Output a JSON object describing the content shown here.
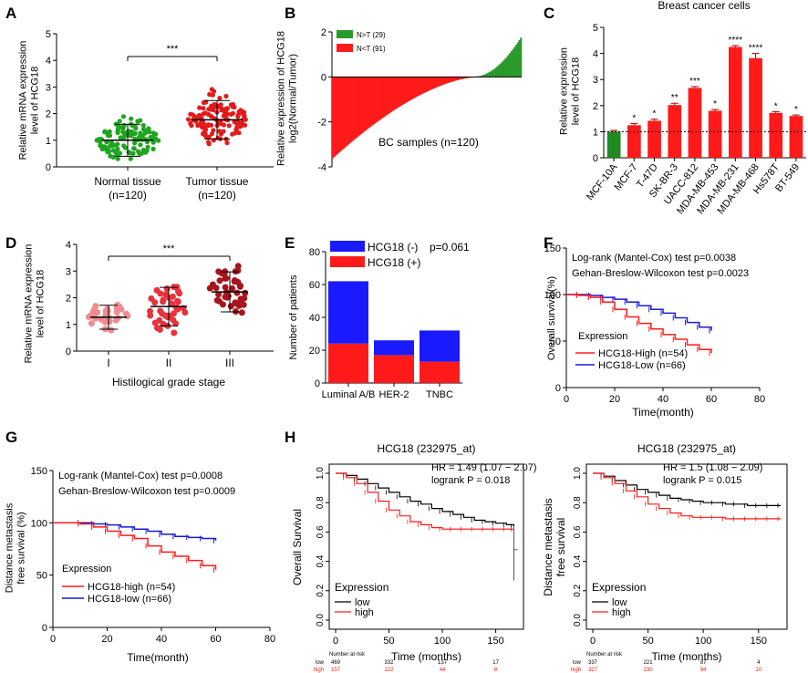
{
  "panels": {
    "A": {
      "letter": "A",
      "chart_data": {
        "type": "scatter",
        "ylabel": [
          "Relative mRNA expression",
          "level of HCG18"
        ],
        "ylim": [
          0,
          5
        ],
        "yticks": [
          "0",
          "1",
          "2",
          "3",
          "4",
          "5"
        ],
        "groups": [
          {
            "name": "Normal tissue",
            "n": "(n=120)",
            "mean": 1.0,
            "sd": 0.6,
            "color": "#1fa51f",
            "min": 0.3,
            "max": 3.0
          },
          {
            "name": "Tumor tissue",
            "n": "(n=120)",
            "mean": 1.77,
            "sd": 0.72,
            "color": "#e31a1c",
            "min": 0.6,
            "max": 3.85
          }
        ],
        "significance": "***"
      }
    },
    "B": {
      "letter": "B",
      "chart_data": {
        "type": "bar",
        "ylabel": [
          "Relative expression of HCG18",
          "log2(Normal/Tumor)"
        ],
        "ylim": [
          -4,
          2
        ],
        "yticks": [
          "-4",
          "-2",
          "0",
          "2"
        ],
        "xlabel": "BC samples (n=120)",
        "legend": [
          {
            "label": "N>T (29)",
            "color": "#2a9a2a"
          },
          {
            "label": "N<T (91)",
            "color": "#ff1a1a"
          }
        ],
        "n_neg": 91,
        "n_pos": 29,
        "min": -3.6,
        "max": 1.75
      }
    },
    "C": {
      "letter": "C",
      "chart_data": {
        "type": "bar",
        "title": "Breast cancer cells",
        "ylabel": [
          "Relative expression",
          "level of HCG18"
        ],
        "ylim": [
          0,
          5
        ],
        "yticks": [
          "0",
          "1",
          "2",
          "3",
          "4",
          "5"
        ],
        "categories": [
          "MCF-10A",
          "MCF-7",
          "T-47D",
          "SK-BR-3",
          "UACC-812",
          "MDA-MB-453",
          "MDA-MB-231",
          "MDA-MB-468",
          "Hs578T",
          "BT-549"
        ],
        "values": [
          1.0,
          1.25,
          1.42,
          2.02,
          2.68,
          1.8,
          4.25,
          3.82,
          1.72,
          1.6
        ],
        "errors": [
          0.05,
          0.06,
          0.06,
          0.07,
          0.05,
          0.05,
          0.05,
          0.18,
          0.05,
          0.04
        ],
        "stars": [
          "",
          "*",
          "*",
          "**",
          "***",
          "*",
          "****",
          "****",
          "*",
          "*"
        ],
        "colors": [
          "#1f8a1f",
          "#ff1a1a",
          "#ff1a1a",
          "#ff1a1a",
          "#ff1a1a",
          "#ff1a1a",
          "#ff1a1a",
          "#ff1a1a",
          "#ff1a1a",
          "#ff1a1a"
        ],
        "reference_line": 1.0
      }
    },
    "D": {
      "letter": "D",
      "chart_data": {
        "type": "scatter",
        "ylabel": [
          "Relative mRNA expression",
          "level of HCG18"
        ],
        "xlabel": "Histilogical grade stage",
        "ylim": [
          0,
          4
        ],
        "yticks": [
          "0",
          "1",
          "2",
          "3",
          "4"
        ],
        "groups": [
          {
            "name": "I",
            "mean": 1.27,
            "sd": 0.45,
            "color": "#f08c90",
            "count": 30,
            "min": 0.6,
            "max": 2.6
          },
          {
            "name": "II",
            "mean": 1.67,
            "sd": 0.72,
            "color": "#e8323c",
            "count": 40,
            "min": 0.4,
            "max": 3.7
          },
          {
            "name": "III",
            "mean": 2.22,
            "sd": 0.75,
            "color": "#a8141e",
            "count": 42,
            "min": 0.8,
            "max": 3.9
          }
        ],
        "significance": "***"
      }
    },
    "E": {
      "letter": "E",
      "chart_data": {
        "type": "bar",
        "ylabel": "Number of patients",
        "ylim": [
          0,
          80
        ],
        "yticks": [
          "0",
          "20",
          "40",
          "60",
          "80"
        ],
        "categories": [
          "Luminal A/B",
          "HER-2",
          "TNBC"
        ],
        "series": [
          {
            "name": "HCG18 (+)",
            "color": "#ff1a1a",
            "values": [
              24,
              17,
              13
            ]
          },
          {
            "name": "HCG18 (-)",
            "color": "#1a1aff",
            "values": [
              38,
              9,
              19
            ]
          }
        ],
        "pvalue": "p=0.061"
      }
    },
    "F": {
      "letter": "F",
      "chart_data": {
        "type": "line",
        "ylabel": "Overall survival(%)",
        "xlabel": "Time(month)",
        "xlim": [
          0,
          80
        ],
        "ylim": [
          0,
          150
        ],
        "xticks": [
          "0",
          "20",
          "40",
          "60",
          "80"
        ],
        "yticks": [
          "0",
          "50",
          "100",
          "150"
        ],
        "annotations": [
          "Log-rank (Mantel-Cox) test p=0.0038",
          "Gehan-Breslow-Wilcoxon test p=0.0023"
        ],
        "legend_title": "Expression",
        "series": [
          {
            "name": "HCG18-High (n=54)",
            "color": "#ff1a1a",
            "x": [
              0,
              5,
              10,
              15,
              20,
              25,
              30,
              35,
              40,
              45,
              50,
              55,
              60
            ],
            "y": [
              100,
              99,
              97,
              92,
              84,
              76,
              69,
              63,
              57,
              52,
              46,
              41,
              37
            ]
          },
          {
            "name": "HCG18-Low (n=66)",
            "color": "#1a1ad6",
            "x": [
              0,
              5,
              10,
              15,
              20,
              25,
              30,
              35,
              40,
              45,
              50,
              55,
              60
            ],
            "y": [
              100,
              100,
              99,
              97,
              95,
              92,
              88,
              84,
              80,
              75,
              70,
              65,
              61
            ]
          }
        ]
      }
    },
    "G": {
      "letter": "G",
      "chart_data": {
        "type": "line",
        "ylabel": [
          "Distance metastasis",
          "free survival (%)"
        ],
        "xlabel": "Time(month)",
        "xlim": [
          0,
          80
        ],
        "ylim": [
          0,
          150
        ],
        "xticks": [
          "0",
          "20",
          "40",
          "60",
          "80"
        ],
        "yticks": [
          "0",
          "50",
          "100",
          "150"
        ],
        "annotations": [
          "Log-rank (Mantel-Cox) test p=0.0008",
          "Gehan-Breslow-Wilcoxon test p=0.0009"
        ],
        "legend_title": "Expression",
        "series": [
          {
            "name": "HCG18-high (n=54)",
            "color": "#ff1a1a",
            "x": [
              0,
              10,
              15,
              20,
              25,
              30,
              35,
              40,
              45,
              50,
              55,
              60
            ],
            "y": [
              100,
              99,
              96,
              92,
              88,
              85,
              78,
              72,
              68,
              64,
              59,
              55
            ]
          },
          {
            "name": "HCG18-low (n=66)",
            "color": "#1a1ad6",
            "x": [
              0,
              10,
              15,
              20,
              25,
              30,
              35,
              40,
              45,
              50,
              55,
              60
            ],
            "y": [
              100,
              100,
              99,
              98,
              96,
              94,
              92,
              89,
              87,
              86,
              85,
              83
            ]
          }
        ]
      }
    },
    "H": {
      "letter": "H",
      "risk_header": "Number at risk",
      "charts": [
        {
          "title": "HCG18 (232975_at)",
          "ylabel": "Overall Survival",
          "xlabel": "Time (months)",
          "hr": "HR = 1.49 (1.07 − 2.07)",
          "logrank": "logrank P = 0.018",
          "legend_title": "Expression",
          "xlim": [
            0,
            170
          ],
          "ylim": [
            0,
            1
          ],
          "xticks": [
            "0",
            "50",
            "100",
            "150"
          ],
          "yticks": [
            "0.0",
            "0.2",
            "0.4",
            "0.6",
            "0.8",
            "1.0"
          ],
          "series": [
            {
              "name": "low",
              "color": "#000000",
              "x": [
                0,
                10,
                20,
                30,
                40,
                50,
                60,
                70,
                80,
                90,
                100,
                110,
                120,
                130,
                140,
                150,
                160,
                167
              ],
              "y": [
                1.0,
                0.985,
                0.96,
                0.93,
                0.9,
                0.87,
                0.84,
                0.81,
                0.79,
                0.76,
                0.74,
                0.72,
                0.7,
                0.68,
                0.67,
                0.66,
                0.65,
                0.64
              ]
            },
            {
              "name": "high",
              "color": "#ff1a1a",
              "x": [
                0,
                10,
                20,
                30,
                40,
                50,
                60,
                70,
                80,
                90,
                100,
                110,
                120,
                130,
                140,
                150,
                160,
                167
              ],
              "y": [
                1.0,
                0.97,
                0.93,
                0.87,
                0.81,
                0.75,
                0.71,
                0.67,
                0.65,
                0.63,
                0.62,
                0.62,
                0.62,
                0.62,
                0.62,
                0.62,
                0.62,
                0.62
              ]
            }
          ],
          "risk": {
            "low_label": "low",
            "high_label": "high",
            "low": [
              "469",
              "332",
              "137",
              "17"
            ],
            "high": [
              "157",
              "122",
              "44",
              "8"
            ]
          }
        },
        {
          "title": "HCG18 (232975_at)",
          "ylabel": [
            "Distance metastasis",
            "free survival"
          ],
          "xlabel": "Time (months)",
          "hr": "HR = 1.5 (1.08 − 2.09)",
          "logrank": "logrank P = 0.015",
          "legend_title": "Expression",
          "xlim": [
            0,
            170
          ],
          "ylim": [
            0,
            1
          ],
          "xticks": [
            "0",
            "50",
            "100",
            "150"
          ],
          "yticks": [
            "0.0",
            "0.2",
            "0.4",
            "0.6",
            "0.8",
            "1.0"
          ],
          "series": [
            {
              "name": "low",
              "color": "#000000",
              "x": [
                0,
                10,
                20,
                30,
                40,
                50,
                60,
                70,
                80,
                90,
                100,
                110,
                120,
                130,
                140,
                150,
                160,
                170
              ],
              "y": [
                1.0,
                0.98,
                0.95,
                0.92,
                0.89,
                0.87,
                0.85,
                0.83,
                0.82,
                0.81,
                0.8,
                0.8,
                0.79,
                0.79,
                0.78,
                0.78,
                0.78,
                0.78
              ]
            },
            {
              "name": "high",
              "color": "#ff1a1a",
              "x": [
                0,
                10,
                20,
                30,
                40,
                50,
                60,
                70,
                80,
                90,
                100,
                110,
                120,
                130,
                140,
                150,
                160,
                170
              ],
              "y": [
                1.0,
                0.97,
                0.93,
                0.88,
                0.84,
                0.79,
                0.76,
                0.73,
                0.71,
                0.7,
                0.7,
                0.7,
                0.69,
                0.69,
                0.69,
                0.69,
                0.69,
                0.69
              ]
            }
          ],
          "risk": {
            "low_label": "low",
            "high_label": "high",
            "low": [
              "337",
              "221",
              "87",
              "4"
            ],
            "high": [
              "327",
              "230",
              "94",
              "10"
            ]
          }
        }
      ]
    }
  }
}
